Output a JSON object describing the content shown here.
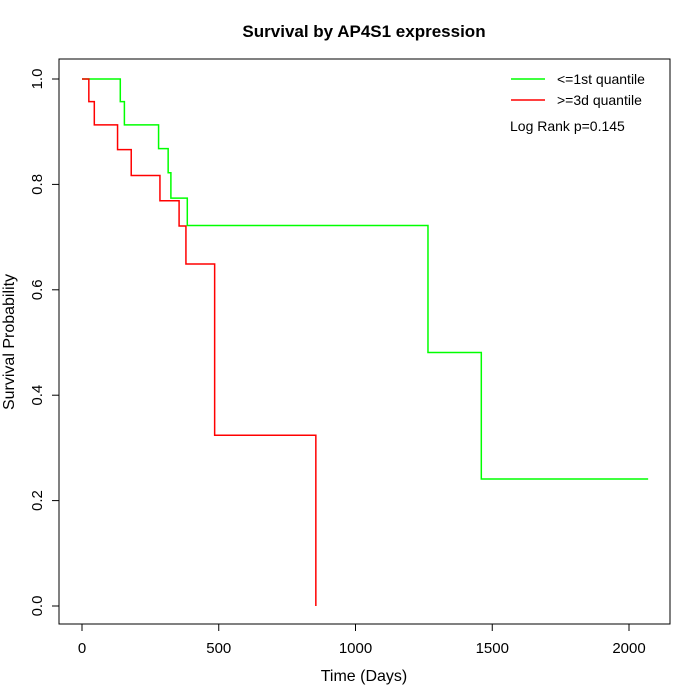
{
  "chart_data": {
    "type": "line",
    "step": true,
    "title": "Survival by AP4S1 expression",
    "xlabel": "Time (Days)",
    "ylabel": "Survival Probability",
    "xlim": [
      0,
      2070
    ],
    "ylim": [
      0,
      1
    ],
    "x_ticks": [
      0,
      500,
      1000,
      1500,
      2000
    ],
    "x_tick_labels": [
      "0",
      "500",
      "1000",
      "1500",
      "2000"
    ],
    "y_ticks": [
      0,
      0.2,
      0.4,
      0.6,
      0.8,
      1.0
    ],
    "y_tick_labels": [
      "0.0",
      "0.2",
      "0.4",
      "0.6",
      "0.8",
      "1.0"
    ],
    "legend_position": "top-right",
    "annotation": "Log Rank p=0.145",
    "grid": false,
    "series": [
      {
        "name": "<=1st quantile",
        "color": "#00ff00",
        "x": [
          0,
          140,
          155,
          280,
          315,
          325,
          385,
          1265,
          1460,
          2070
        ],
        "y": [
          1.0,
          0.957,
          0.913,
          0.868,
          0.822,
          0.774,
          0.722,
          0.481,
          0.241,
          0.241
        ]
      },
      {
        "name": ">=3d quantile",
        "color": "#ff0000",
        "x": [
          0,
          25,
          45,
          130,
          180,
          285,
          355,
          380,
          485,
          855,
          855
        ],
        "y": [
          1.0,
          0.957,
          0.913,
          0.866,
          0.817,
          0.769,
          0.721,
          0.649,
          0.324,
          0.324,
          0.0
        ]
      }
    ]
  }
}
